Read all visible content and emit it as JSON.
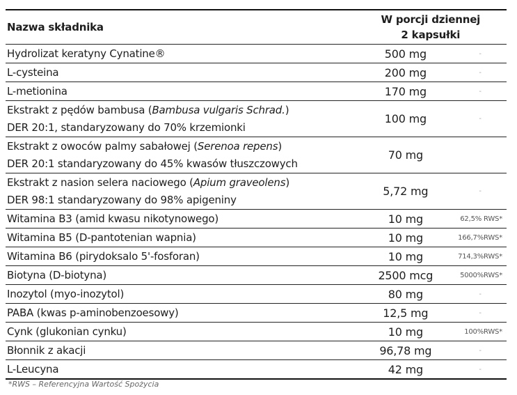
{
  "header": {
    "name": "Nazwa składnika",
    "amount_line1": "W porcji dziennej",
    "amount_line2": "2 kapsułki"
  },
  "rows": [
    {
      "name": "Hydrolizat keratyny Cynatine®",
      "amount": "500 mg",
      "rws": "-"
    },
    {
      "name": "L-cysteina",
      "amount": "200 mg",
      "rws": "-"
    },
    {
      "name": "L-metionina",
      "amount": "170 mg",
      "rws": "-"
    },
    {
      "name_pre": "Ekstrakt z pędów bambusa (",
      "name_latin": "Bambusa vulgaris Schrad.",
      "name_post": ")",
      "name_line2": "DER 20:1,  standaryzowany do 70% krzemionki",
      "amount": "100 mg",
      "rws": "-"
    },
    {
      "name_pre": "Ekstrakt z owoców palmy sabałowej (",
      "name_latin": "Serenoa repens",
      "name_post": ")",
      "name_line2": "DER 20:1 standaryzowany do 45% kwasów tłuszczowych",
      "amount": "70 mg",
      "rws": ""
    },
    {
      "name_pre": "Ekstrakt z nasion selera naciowego  (",
      "name_latin": "Apium graveolens",
      "name_post": ")",
      "name_line2": "DER 98:1 standaryzowany do 98% apigeniny",
      "amount": "5,72 mg",
      "rws": "-"
    },
    {
      "name": "Witamina B3 (amid kwasu nikotynowego)",
      "amount": "10 mg",
      "rws": "62,5% RWS*"
    },
    {
      "name": "Witamina B5 (D-pantotenian wapnia)",
      "amount": "10 mg",
      "rws": "166,7%RWS*"
    },
    {
      "name": "Witamina B6 (pirydoksalo 5'-fosforan)",
      "amount": "10 mg",
      "rws": "714,3%RWS*"
    },
    {
      "name": "Biotyna (D-biotyna)",
      "amount": "2500 mcg",
      "rws": "5000%RWS*"
    },
    {
      "name": "Inozytol (myo-inozytol)",
      "amount": "80 mg",
      "rws": "-"
    },
    {
      "name": "PABA (kwas p-aminobenzoesowy)",
      "amount": "12,5 mg",
      "rws": "-"
    },
    {
      "name": "Cynk (glukonian cynku)",
      "amount": "10 mg",
      "rws": "100%RWS*"
    },
    {
      "name": "Błonnik z akacji",
      "amount": "96,78 mg",
      "rws": "-"
    },
    {
      "name": "L-Leucyna",
      "amount": "42 mg",
      "rws": "-"
    }
  ],
  "footnote": "*RWS – Referencyjna Wartość Spożycia"
}
